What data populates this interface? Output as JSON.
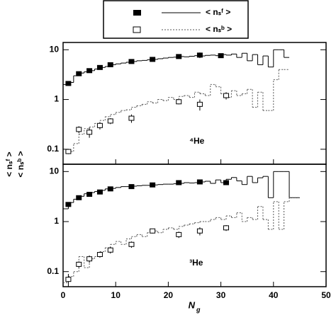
{
  "legend": [
    {
      "label": "< nₛᶠ >"
    },
    {
      "label": "< nₛᵇ >"
    }
  ],
  "y_label": [
    "< nₛᶠ >",
    "< nₛᵇ >"
  ],
  "x_label": "N",
  "x_label_sub": "g",
  "chart_data": [
    {
      "type": "step",
      "annotation": "⁴He",
      "xlim": [
        0,
        50
      ],
      "xticks": [
        0,
        10,
        20,
        30,
        40,
        50
      ],
      "ylim": [
        0.05,
        14
      ],
      "yticks": [
        0.1,
        1,
        10
      ],
      "log_y": true,
      "series": [
        {
          "type": "step",
          "color": "#000",
          "dash": "none",
          "bins": [
            0,
            1,
            2,
            3,
            4,
            5,
            6,
            7,
            8,
            9,
            10,
            11,
            12,
            13,
            14,
            15,
            16,
            17,
            18,
            19,
            20,
            21,
            22,
            23,
            24,
            25,
            26,
            27,
            28,
            29,
            30,
            31,
            32,
            33,
            34,
            35,
            36,
            37,
            38,
            39,
            40,
            41,
            42,
            43
          ],
          "values": [
            2.0,
            2.2,
            3.0,
            3.4,
            3.6,
            3.8,
            4.1,
            4.4,
            4.6,
            5.0,
            5.2,
            5.4,
            5.6,
            5.8,
            6.0,
            6.1,
            6.3,
            6.4,
            6.6,
            6.8,
            7.0,
            7.1,
            7.3,
            7.2,
            7.4,
            7.6,
            7.5,
            7.7,
            7.8,
            7.6,
            8.0,
            7.8,
            8.2,
            7.0,
            8.5,
            6.0,
            8.0,
            5.0,
            7.5,
            4.5,
            10,
            10,
            7.0
          ]
        },
        {
          "type": "step",
          "color": "#555",
          "dash": "2,2",
          "bins": [
            1,
            2,
            3,
            4,
            5,
            6,
            7,
            8,
            9,
            10,
            11,
            12,
            13,
            14,
            15,
            16,
            17,
            18,
            19,
            20,
            21,
            22,
            23,
            24,
            25,
            26,
            27,
            28,
            29,
            30,
            31,
            32,
            33,
            34,
            35,
            36,
            37,
            38,
            39,
            40,
            41,
            42,
            43
          ],
          "values": [
            0.09,
            0.13,
            0.2,
            0.26,
            0.28,
            0.33,
            0.38,
            0.45,
            0.5,
            0.55,
            0.6,
            0.62,
            0.7,
            0.75,
            0.8,
            0.9,
            0.85,
            1.0,
            0.95,
            1.1,
            1.0,
            1.15,
            1.2,
            1.1,
            1.4,
            1.3,
            1.2,
            2.0,
            1.8,
            1.3,
            1.1,
            1.5,
            1.2,
            1.3,
            1.6,
            0.7,
            1.4,
            0.6,
            0.6,
            2.5,
            4.0,
            4.0
          ]
        },
        {
          "type": "scatter",
          "marker": "filled",
          "x": [
            1,
            3,
            5,
            7,
            9,
            13,
            17,
            22,
            26,
            30
          ],
          "values": [
            2.1,
            3.3,
            3.8,
            4.4,
            5.0,
            5.8,
            6.4,
            7.3,
            7.8,
            7.6
          ],
          "errors": [
            0.2,
            0.3,
            0.3,
            0.3,
            0.3,
            0.4,
            0.4,
            0.6,
            1.0,
            0.6
          ]
        },
        {
          "type": "scatter",
          "marker": "open",
          "x": [
            1,
            3,
            5,
            7,
            9,
            13,
            22,
            26,
            31
          ],
          "values": [
            0.09,
            0.25,
            0.22,
            0.3,
            0.37,
            0.42,
            0.9,
            0.8,
            1.2
          ],
          "errors": [
            0.01,
            0.04,
            0.05,
            0.05,
            0.05,
            0.08,
            0.1,
            0.2,
            0.2
          ]
        }
      ]
    },
    {
      "type": "step",
      "annotation": "³He",
      "xlim": [
        0,
        50
      ],
      "xticks": [
        0,
        10,
        20,
        30,
        40,
        50
      ],
      "ylim": [
        0.05,
        14
      ],
      "yticks": [
        0.1,
        1,
        10
      ],
      "log_y": true,
      "series": [
        {
          "type": "step",
          "color": "#000",
          "dash": "none",
          "bins": [
            0,
            1,
            2,
            3,
            4,
            5,
            6,
            7,
            8,
            9,
            10,
            11,
            12,
            13,
            14,
            15,
            16,
            17,
            18,
            19,
            20,
            21,
            22,
            23,
            24,
            25,
            26,
            27,
            28,
            29,
            30,
            31,
            32,
            33,
            34,
            35,
            36,
            37,
            38,
            39,
            40,
            41,
            42,
            43,
            44,
            45
          ],
          "values": [
            1.8,
            2.4,
            2.8,
            3.2,
            3.6,
            3.8,
            4.0,
            4.2,
            4.5,
            4.6,
            4.8,
            5.0,
            5.0,
            5.1,
            5.2,
            5.3,
            5.3,
            5.4,
            5.5,
            5.6,
            5.6,
            5.7,
            5.8,
            6.0,
            5.9,
            6.0,
            6.2,
            6.4,
            5.8,
            6.8,
            6.0,
            7.0,
            7.6,
            6.5,
            5.5,
            8.0,
            6.0,
            7.5,
            8.0,
            3.0,
            10,
            10,
            10,
            3.0,
            3.0
          ]
        },
        {
          "type": "step",
          "color": "#555",
          "dash": "2,2",
          "bins": [
            0,
            1,
            2,
            3,
            4,
            5,
            6,
            7,
            8,
            9,
            10,
            11,
            12,
            13,
            14,
            15,
            16,
            17,
            18,
            19,
            20,
            21,
            22,
            23,
            24,
            25,
            26,
            27,
            28,
            29,
            30,
            31,
            32,
            33,
            34,
            35,
            36,
            37,
            38,
            39,
            40,
            41,
            42,
            43,
            44,
            45
          ],
          "values": [
            0.06,
            0.08,
            0.1,
            0.2,
            0.12,
            0.18,
            0.2,
            0.25,
            0.3,
            0.35,
            0.4,
            0.35,
            0.45,
            0.5,
            0.55,
            0.5,
            0.6,
            0.65,
            0.6,
            0.7,
            0.75,
            0.7,
            0.8,
            0.85,
            0.9,
            0.95,
            1.0,
            1.0,
            1.1,
            1.2,
            1.1,
            1.3,
            1.2,
            1.5,
            1.0,
            1.2,
            1.1,
            2.0,
            1.1,
            0.7,
            2.5,
            0.7,
            2.5,
            3.0,
            3.0
          ]
        },
        {
          "type": "scatter",
          "marker": "filled",
          "x": [
            1,
            3,
            5,
            7,
            9,
            13,
            17,
            22,
            26,
            31
          ],
          "values": [
            2.2,
            3.0,
            3.5,
            3.9,
            4.5,
            5.0,
            5.4,
            6.0,
            6.2,
            6.0
          ],
          "errors": [
            0.2,
            0.3,
            0.3,
            0.3,
            0.3,
            0.4,
            0.4,
            0.5,
            0.6,
            0.6
          ]
        },
        {
          "type": "scatter",
          "marker": "open",
          "x": [
            1,
            3,
            5,
            7,
            9,
            13,
            17,
            22,
            26,
            31
          ],
          "values": [
            0.07,
            0.14,
            0.18,
            0.22,
            0.27,
            0.35,
            0.65,
            0.55,
            0.65,
            0.75
          ],
          "errors": [
            0.02,
            0.02,
            0.03,
            0.03,
            0.04,
            0.05,
            0.07,
            0.08,
            0.12,
            0.1
          ]
        }
      ]
    }
  ]
}
